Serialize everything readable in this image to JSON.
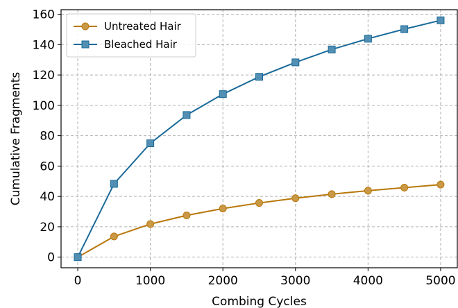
{
  "chart_data": {
    "type": "line",
    "xlabel": "Combing Cycles",
    "ylabel": "Cumulative Fragments",
    "xlim": [
      -230,
      5230
    ],
    "ylim": [
      -7,
      163
    ],
    "x_ticks": [
      0,
      1000,
      2000,
      3000,
      4000,
      5000
    ],
    "y_ticks": [
      0,
      20,
      40,
      60,
      80,
      100,
      120,
      140,
      160
    ],
    "grid": true,
    "legend_position": "top-left",
    "x": [
      0,
      500,
      1000,
      1500,
      2000,
      2500,
      3000,
      3500,
      4000,
      4500,
      5000
    ],
    "series": [
      {
        "name": "Untreated Hair",
        "color": "#b8770a",
        "marker": "circle",
        "values": [
          0,
          13.6,
          21.8,
          27.5,
          32.0,
          35.7,
          38.8,
          41.5,
          43.8,
          45.8,
          47.8
        ]
      },
      {
        "name": "Bleached Hair",
        "color": "#1a6a9a",
        "marker": "square",
        "values": [
          0,
          48.3,
          75.0,
          93.6,
          107.4,
          118.8,
          128.3,
          136.8,
          143.9,
          150.2,
          156.0
        ]
      }
    ]
  }
}
